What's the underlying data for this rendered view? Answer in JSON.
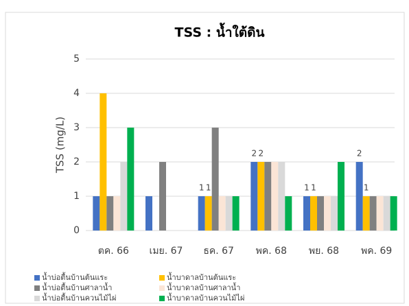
{
  "chart_data": {
    "type": "bar",
    "title": "TSS : น้ำใต้ดิน",
    "y_label": "TSS (mg/L)",
    "categories": [
      "ตค. 66",
      "เมย. 67",
      "ธค. 67",
      "พค. 68",
      "พย. 68",
      "พค. 69"
    ],
    "series": [
      {
        "name": "น้ำบ่อตื้นบ้านต้นแระ",
        "color": "#4472c4",
        "values": [
          1,
          1,
          1,
          2,
          1,
          2
        ],
        "value_labels": [
          null,
          null,
          "1",
          "2",
          "1",
          "2"
        ]
      },
      {
        "name": "น้ำบาดาลบ้านต้นแระ",
        "color": "#ffc000",
        "values": [
          4,
          null,
          1,
          2,
          1,
          1
        ],
        "value_labels": [
          null,
          null,
          "1",
          "2",
          "1",
          "1"
        ]
      },
      {
        "name": "น้ำบ่อตื้นบ้านศาลาน้ำ",
        "color": "#808080",
        "values": [
          1,
          2,
          3,
          2,
          1,
          1
        ]
      },
      {
        "name": "น้ำบาดาลบ้านศาลาน้ำ",
        "color": "#fbe5d6",
        "values": [
          1,
          null,
          1,
          2,
          1,
          1
        ]
      },
      {
        "name": "น้ำบ่อตื้นบ้านควนไม้ไผ่",
        "color": "#d9d9d9",
        "values": [
          2,
          null,
          1,
          2,
          1,
          1
        ]
      },
      {
        "name": "น้ำบาดาลบ้านควนไม้ไผ่",
        "color": "#00b050",
        "values": [
          3,
          null,
          1,
          1,
          2,
          1
        ]
      }
    ],
    "ylim": [
      0,
      5
    ],
    "yticks": [
      0,
      1,
      2,
      3,
      4,
      5
    ],
    "grid": true
  }
}
